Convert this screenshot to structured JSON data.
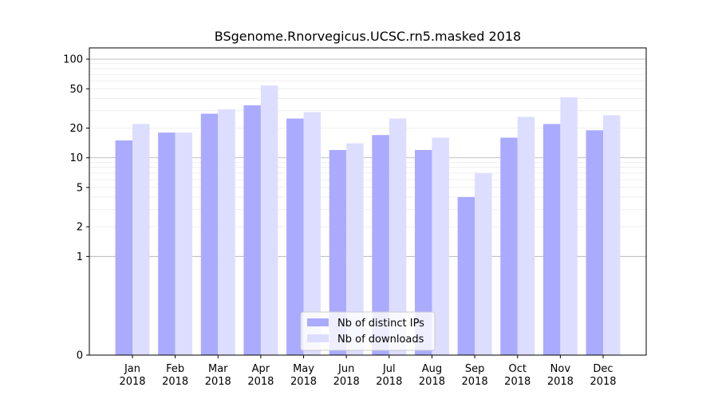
{
  "chart_data": {
    "type": "bar",
    "title": "BSgenome.Rnorvegicus.UCSC.rn5.masked 2018",
    "xlabel": "",
    "ylabel": "",
    "y_scale": "symlog",
    "ylim": [
      0,
      130
    ],
    "y_ticks": [
      0,
      1,
      2,
      5,
      10,
      20,
      50,
      100
    ],
    "y_tick_labels": [
      "0",
      "1",
      "2",
      "5",
      "10",
      "20",
      "50",
      "100"
    ],
    "categories": [
      "Jan\n2018",
      "Feb\n2018",
      "Mar\n2018",
      "Apr\n2018",
      "May\n2018",
      "Jun\n2018",
      "Jul\n2018",
      "Aug\n2018",
      "Sep\n2018",
      "Oct\n2018",
      "Nov\n2018",
      "Dec\n2018"
    ],
    "series": [
      {
        "name": "Nb of distinct IPs",
        "color": "#aaaaff",
        "values": [
          15,
          18,
          28,
          34,
          25,
          12,
          17,
          12,
          4,
          16,
          22,
          19
        ]
      },
      {
        "name": "Nb of downloads",
        "color": "#ddddff",
        "values": [
          22,
          18,
          31,
          54,
          29,
          14,
          25,
          16,
          7,
          26,
          41,
          27
        ]
      }
    ],
    "legend_position": "bottom-center",
    "grid": "y"
  }
}
